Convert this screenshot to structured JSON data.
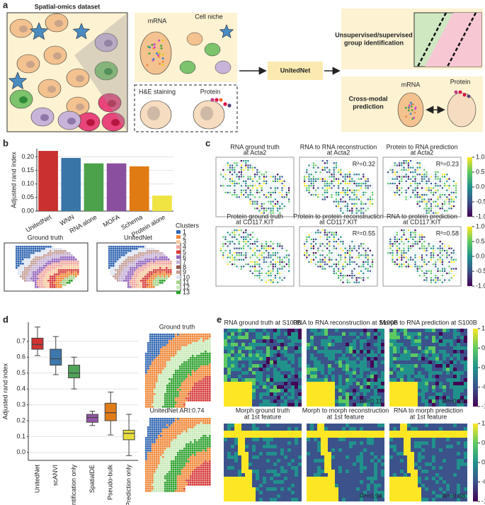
{
  "panel_labels": {
    "a": "a",
    "b": "b",
    "c": "c",
    "d": "d",
    "e": "e"
  },
  "schematic": {
    "dataset_title": "Spatial-omics dataset",
    "mrna": "mRNA",
    "cell_niche": "Cell niche",
    "he_staining": "H&E staining",
    "protein": "Protein",
    "method": "UnitedNet",
    "group_identification": [
      "Unsupervised/supervised",
      "group identification"
    ],
    "cross_modal": [
      "Cross-modal",
      "prediction"
    ],
    "mrna_right": "mRNA",
    "protein_right": "Protein"
  },
  "chart_data": [
    {
      "type": "bar",
      "ylabel": "Adjusted rand index",
      "categories": [
        "UnitedNet",
        "WNN",
        "RNA alone",
        "MOFA",
        "Schema",
        "Protein alone"
      ],
      "values": [
        0.222,
        0.196,
        0.176,
        0.176,
        0.165,
        0.057
      ],
      "colors": [
        "#c8312f",
        "#3a75a8",
        "#4ba24a",
        "#8b4fa0",
        "#e07b14",
        "#f0e442"
      ],
      "ylim": [
        0,
        0.23
      ],
      "yticks": [
        {
          "value": 0,
          "label": "0.00"
        },
        0.05,
        {
          "value": 0.1,
          "label": "0.10"
        },
        0.15,
        {
          "value": 0.2,
          "label": "0.20"
        }
      ],
      "grid": true
    },
    {
      "type": "box",
      "ylabel": "Adjusted rand index",
      "categories": [
        "UnitedNet",
        "scANVI",
        "Identification only",
        "SpatialDE",
        "Pseudo-bulk",
        "Prediction only"
      ],
      "min": [
        0.61,
        0.49,
        0.4,
        0.17,
        0.11,
        -0.02
      ],
      "q1": [
        0.65,
        0.55,
        0.47,
        0.19,
        0.2,
        0.08
      ],
      "median": [
        0.68,
        0.59,
        0.5,
        0.22,
        0.25,
        0.12
      ],
      "q3": [
        0.72,
        0.65,
        0.55,
        0.24,
        0.31,
        0.14
      ],
      "max": [
        0.79,
        0.73,
        0.6,
        0.26,
        0.38,
        0.24
      ],
      "colors": [
        "#d03232",
        "#3d78ad",
        "#4ea357",
        "#9356a8",
        "#e07b1a",
        "#e8df3e"
      ],
      "ylim": [
        -0.05,
        0.82
      ],
      "yticks": [
        {
          "value": 0,
          "label": "0.0"
        },
        0.1,
        0.2,
        0.3,
        0.4,
        0.5,
        0.6,
        0.7
      ],
      "grid": true
    }
  ],
  "clusters": {
    "titles": [
      "Ground truth",
      "UnitedNet"
    ],
    "legend_title": "Clusters",
    "labels": [
      "1",
      "2",
      "3",
      "4",
      "5",
      "6",
      "7",
      "8",
      "9",
      "10",
      "11",
      "12",
      "13"
    ],
    "colors": [
      "#2f64b0",
      "#ef8636",
      "#f6c89f",
      "#f0a6a0",
      "#d63a3a",
      "#9467bd",
      "#c5b0d5",
      "#8c564b",
      "#c49c94",
      "#dde3f0",
      "#a6d38a",
      "#c6e8b6",
      "#2ca02c"
    ]
  },
  "colorbar": {
    "lim": [
      -1,
      1
    ],
    "ticks": [
      {
        "value": 1,
        "label": "1.0"
      },
      0.5,
      {
        "value": 0,
        "label": "0.0"
      },
      -0.5,
      {
        "value": -1,
        "label": "-1.0"
      }
    ],
    "colors": [
      "#440154",
      "#3b528b",
      "#21918c",
      "#5ec962",
      "#fde725"
    ]
  },
  "panel_c": [
    {
      "title": [
        "RNA ground truth",
        "at Acta2"
      ]
    },
    {
      "title": [
        "RNA to RNA reconstruction",
        "at Acta2"
      ],
      "r2": "R²=0.32"
    },
    {
      "title": [
        "Protein to RNA prediction",
        "at Acta2"
      ],
      "r2": "R²=0.23"
    },
    {
      "title": [
        "Protein ground truth",
        "at CD117.KIT"
      ]
    },
    {
      "title": [
        "Protein to protein reconstruction",
        "at CD117.KIT"
      ],
      "r2": "R²=0.55"
    },
    {
      "title": [
        "RNA to protein prediction",
        "at CD117.KIT"
      ],
      "r2": "R²=0.58"
    }
  ],
  "panel_d_maps": [
    "Ground truth",
    "UnitedNet ARI:0.74"
  ],
  "panel_e": [
    {
      "title": [
        "RNA ground truth at S100B"
      ]
    },
    {
      "title": [
        "RNA to RNA reconstruction at S100B"
      ],
      "r2": "R²=0.11"
    },
    {
      "title": [
        "Morph to RNA prediction at S100B"
      ],
      "r2": "R²=0.19"
    },
    {
      "title": [
        "Morph ground truth",
        "at 1st feature"
      ]
    },
    {
      "title": [
        "Morph to morph reconstruction",
        "at 1st feature"
      ],
      "r2": "R²=0.94"
    },
    {
      "title": [
        "RNA to morph prediction",
        "at 1st feature"
      ],
      "r2": "R²=0.08"
    }
  ]
}
